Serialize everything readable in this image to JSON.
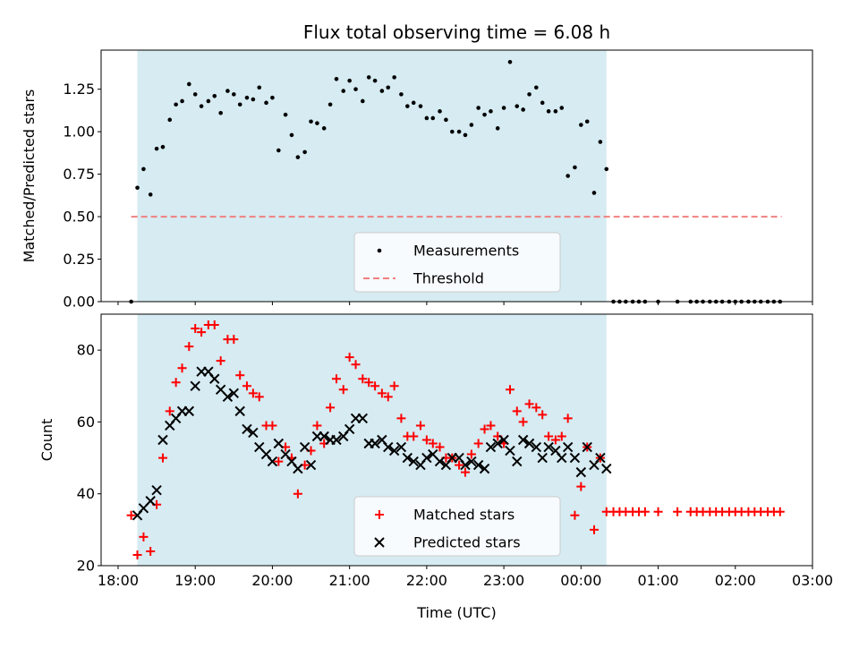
{
  "chart_data": [
    {
      "type": "scatter",
      "title": "Flux total observing time = 6.08 h",
      "xlabel": "",
      "ylabel": "Matched/Predicted stars",
      "xlim_hours": [
        17.78,
        27.0
      ],
      "ylim": [
        0.0,
        1.48
      ],
      "yticks": [
        0.0,
        0.25,
        0.5,
        0.75,
        1.0,
        1.25
      ],
      "ytick_labels": [
        "0.00",
        "0.25",
        "0.50",
        "0.75",
        "1.00",
        "1.25"
      ],
      "xtick_hours": [
        18,
        19,
        20,
        21,
        22,
        23,
        24,
        25,
        26,
        27
      ],
      "observing_window_hours": [
        18.25,
        24.33
      ],
      "observing_window_color": "#add8e6",
      "legend": {
        "location": "lower center",
        "entries": [
          "Measurements",
          "Threshold"
        ]
      },
      "threshold": {
        "name": "Threshold",
        "value": 0.5,
        "x_range_hours": [
          18.17,
          26.6
        ],
        "color": "#f08080",
        "style": "dashed"
      },
      "series": [
        {
          "name": "Measurements",
          "color": "#000000",
          "x": [
            18.17,
            18.25,
            18.33,
            18.42,
            18.5,
            18.58,
            18.67,
            18.75,
            18.83,
            18.92,
            19.0,
            19.08,
            19.17,
            19.25,
            19.33,
            19.42,
            19.5,
            19.58,
            19.67,
            19.75,
            19.83,
            19.92,
            20.0,
            20.08,
            20.17,
            20.25,
            20.33,
            20.42,
            20.5,
            20.58,
            20.67,
            20.75,
            20.83,
            20.92,
            21.0,
            21.08,
            21.17,
            21.25,
            21.33,
            21.42,
            21.5,
            21.58,
            21.67,
            21.75,
            21.83,
            21.92,
            22.0,
            22.08,
            22.17,
            22.25,
            22.33,
            22.42,
            22.5,
            22.58,
            22.67,
            22.75,
            22.83,
            22.92,
            23.0,
            23.08,
            23.17,
            23.25,
            23.33,
            23.42,
            23.5,
            23.58,
            23.67,
            23.75,
            23.83,
            23.92,
            24.0,
            24.08,
            24.17,
            24.25,
            24.33,
            24.42,
            24.5,
            24.58,
            24.67,
            24.75,
            24.83,
            25.0,
            25.25,
            25.42,
            25.5,
            25.58,
            25.67,
            25.75,
            25.83,
            25.92,
            26.0,
            26.08,
            26.17,
            26.25,
            26.33,
            26.42,
            26.5,
            26.58
          ],
          "y": [
            0.0,
            0.67,
            0.78,
            0.63,
            0.9,
            0.91,
            1.07,
            1.16,
            1.18,
            1.28,
            1.22,
            1.15,
            1.18,
            1.21,
            1.11,
            1.24,
            1.22,
            1.16,
            1.2,
            1.19,
            1.26,
            1.17,
            1.2,
            0.89,
            1.1,
            0.98,
            0.85,
            0.88,
            1.06,
            1.05,
            1.02,
            1.16,
            1.31,
            1.24,
            1.3,
            1.25,
            1.18,
            1.32,
            1.3,
            1.24,
            1.26,
            1.32,
            1.22,
            1.15,
            1.17,
            1.15,
            1.08,
            1.08,
            1.12,
            1.07,
            1.0,
            1.0,
            0.98,
            1.04,
            1.14,
            1.1,
            1.12,
            1.02,
            1.14,
            1.41,
            1.15,
            1.13,
            1.22,
            1.26,
            1.17,
            1.12,
            1.12,
            1.14,
            0.74,
            0.79,
            1.04,
            1.06,
            0.64,
            0.94,
            0.78,
            0.0,
            0.0,
            0.0,
            0.0,
            0.0,
            0.0,
            0.0,
            0.0,
            0.0,
            0.0,
            0.0,
            0.0,
            0.0,
            0.0,
            0.0,
            0.0,
            0.0,
            0.0,
            0.0,
            0.0,
            0.0,
            0.0,
            0.0
          ]
        }
      ]
    },
    {
      "type": "scatter",
      "title": "",
      "xlabel": "Time (UTC)",
      "ylabel": "Count",
      "xlim_hours": [
        17.78,
        27.0
      ],
      "ylim": [
        20,
        90
      ],
      "yticks": [
        20,
        40,
        60,
        80
      ],
      "ytick_labels": [
        "20",
        "40",
        "60",
        "80"
      ],
      "xtick_hours": [
        18,
        19,
        20,
        21,
        22,
        23,
        24,
        25,
        26,
        27
      ],
      "xtick_labels": [
        "18:00",
        "19:00",
        "20:00",
        "21:00",
        "22:00",
        "23:00",
        "00:00",
        "01:00",
        "02:00",
        "03:00"
      ],
      "observing_window_hours": [
        18.25,
        24.33
      ],
      "observing_window_color": "#add8e6",
      "legend": {
        "location": "lower center",
        "entries": [
          "Matched stars",
          "Predicted stars"
        ]
      },
      "series": [
        {
          "name": "Matched stars",
          "marker": "plus",
          "color": "#ff0000",
          "x": [
            18.17,
            18.25,
            18.33,
            18.42,
            18.5,
            18.58,
            18.67,
            18.75,
            18.83,
            18.92,
            19.0,
            19.08,
            19.17,
            19.25,
            19.33,
            19.42,
            19.5,
            19.58,
            19.67,
            19.75,
            19.83,
            19.92,
            20.0,
            20.08,
            20.17,
            20.25,
            20.33,
            20.42,
            20.5,
            20.58,
            20.67,
            20.75,
            20.83,
            20.92,
            21.0,
            21.08,
            21.17,
            21.25,
            21.33,
            21.42,
            21.5,
            21.58,
            21.67,
            21.75,
            21.83,
            21.92,
            22.0,
            22.08,
            22.17,
            22.25,
            22.33,
            22.42,
            22.5,
            22.58,
            22.67,
            22.75,
            22.83,
            22.92,
            23.0,
            23.08,
            23.17,
            23.25,
            23.33,
            23.42,
            23.5,
            23.58,
            23.67,
            23.75,
            23.83,
            23.92,
            24.0,
            24.08,
            24.17,
            24.25,
            24.33,
            24.42,
            24.5,
            24.58,
            24.67,
            24.75,
            24.83,
            25.0,
            25.25,
            25.42,
            25.5,
            25.58,
            25.67,
            25.75,
            25.83,
            25.92,
            26.0,
            26.08,
            26.17,
            26.25,
            26.33,
            26.42,
            26.5,
            26.58
          ],
          "y": [
            34,
            23,
            28,
            24,
            37,
            50,
            63,
            71,
            75,
            81,
            86,
            85,
            87,
            87,
            77,
            83,
            83,
            73,
            70,
            68,
            67,
            59,
            59,
            49,
            53,
            50,
            40,
            48,
            52,
            59,
            54,
            64,
            72,
            69,
            78,
            76,
            72,
            71,
            70,
            68,
            67,
            70,
            61,
            56,
            56,
            59,
            55,
            54,
            53,
            50,
            50,
            48,
            46,
            51,
            54,
            58,
            59,
            56,
            54,
            69,
            63,
            60,
            65,
            64,
            62,
            56,
            55,
            56,
            61,
            34,
            42,
            53,
            30,
            50,
            35,
            35,
            35,
            35,
            35,
            35,
            35,
            35,
            35,
            35,
            35,
            35,
            35,
            35,
            35,
            35,
            35,
            35,
            35,
            35,
            35,
            35,
            35,
            35
          ]
        },
        {
          "name": "Predicted stars",
          "marker": "x",
          "color": "#000000",
          "x": [
            18.25,
            18.33,
            18.42,
            18.5,
            18.58,
            18.67,
            18.75,
            18.83,
            18.92,
            19.0,
            19.08,
            19.17,
            19.25,
            19.33,
            19.42,
            19.5,
            19.58,
            19.67,
            19.75,
            19.83,
            19.92,
            20.0,
            20.08,
            20.17,
            20.25,
            20.33,
            20.42,
            20.5,
            20.58,
            20.67,
            20.75,
            20.83,
            20.92,
            21.0,
            21.08,
            21.17,
            21.25,
            21.33,
            21.42,
            21.5,
            21.58,
            21.67,
            21.75,
            21.83,
            21.92,
            22.0,
            22.08,
            22.17,
            22.25,
            22.33,
            22.42,
            22.5,
            22.58,
            22.67,
            22.75,
            22.83,
            22.92,
            23.0,
            23.08,
            23.17,
            23.25,
            23.33,
            23.42,
            23.5,
            23.58,
            23.67,
            23.75,
            23.83,
            23.92,
            24.0,
            24.08,
            24.17,
            24.25,
            24.33
          ],
          "y": [
            34,
            36,
            38,
            41,
            55,
            59,
            61,
            63,
            63,
            70,
            74,
            74,
            72,
            69,
            67,
            68,
            63,
            58,
            57,
            53,
            51,
            49,
            54,
            51,
            49,
            47,
            53,
            48,
            56,
            56,
            55,
            55,
            56,
            58,
            61,
            61,
            54,
            54,
            55,
            53,
            52,
            53,
            50,
            49,
            48,
            50,
            51,
            49,
            48,
            50,
            50,
            48,
            49,
            48,
            47,
            53,
            54,
            55,
            52,
            49,
            55,
            54,
            53,
            50,
            53,
            52,
            50,
            53,
            50,
            46,
            53,
            48,
            50,
            47
          ]
        }
      ]
    }
  ]
}
